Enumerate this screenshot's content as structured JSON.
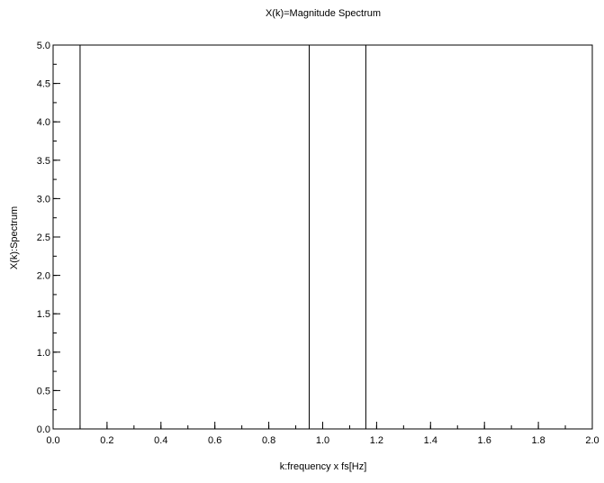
{
  "chart_data": {
    "type": "line",
    "title": "X(k)=Magnitude Spectrum",
    "xlabel": "k:frequency x fs[Hz]",
    "ylabel": "X(k):Spectrum",
    "xlim": [
      0.0,
      2.0
    ],
    "ylim": [
      0.0,
      5.0
    ],
    "grid": false,
    "xticks": [
      0.0,
      0.2,
      0.4,
      0.6,
      0.8,
      1.0,
      1.2,
      1.4,
      1.6,
      1.8,
      2.0
    ],
    "xtick_labels": [
      "0.0",
      "0.2",
      "0.4",
      "0.6",
      "0.8",
      "1.0",
      "1.2",
      "1.4",
      "1.6",
      "1.8",
      "2.0"
    ],
    "xminor_step": 0.1,
    "yticks": [
      0.0,
      0.5,
      1.0,
      1.5,
      2.0,
      2.5,
      3.0,
      3.5,
      4.0,
      4.5,
      5.0
    ],
    "ytick_labels": [
      "0.0",
      "0.5",
      "1.0",
      "1.5",
      "2.0",
      "2.5",
      "3.0",
      "3.5",
      "4.0",
      "4.5",
      "5.0"
    ],
    "yminor_step": 0.25,
    "series": [
      {
        "x": [
          0.0,
          0.1,
          0.1,
          0.1,
          0.95,
          0.95,
          0.95,
          1.16,
          1.16,
          1.16,
          2.0
        ],
        "y": [
          0.0,
          0.0,
          5.0,
          0.0,
          0.0,
          5.0,
          0.0,
          0.0,
          5.0,
          0.0,
          0.0
        ],
        "color": "#000000"
      }
    ]
  }
}
